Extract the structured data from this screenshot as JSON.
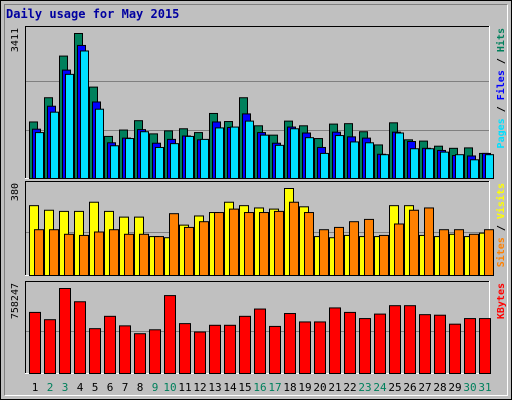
{
  "title": "Daily usage for May 2015",
  "colors": {
    "hits": "#00805c",
    "files": "#0000ff",
    "pages": "#00e0ff",
    "visits": "#ffff00",
    "sites": "#ff8000",
    "kbytes": "#ff0000",
    "day_weekday": "#000000",
    "day_weekend": "#00805c"
  },
  "chart_data": [
    {
      "type": "bar",
      "name": "requests",
      "max_label": "3411",
      "ymax": 3411,
      "categories": [
        "1",
        "2",
        "3",
        "4",
        "5",
        "6",
        "7",
        "8",
        "9",
        "10",
        "11",
        "12",
        "13",
        "14",
        "15",
        "16",
        "17",
        "18",
        "19",
        "20",
        "21",
        "22",
        "23",
        "24",
        "25",
        "26",
        "27",
        "28",
        "29",
        "30",
        "31"
      ],
      "series": [
        {
          "name": "Hits",
          "values": [
            1330,
            1900,
            2880,
            3411,
            2150,
            990,
            1140,
            1360,
            1050,
            1120,
            1170,
            1080,
            1530,
            1340,
            1900,
            1240,
            1020,
            1350,
            1240,
            940,
            1280,
            1290,
            1100,
            790,
            1310,
            910,
            880,
            760,
            710,
            720,
            590
          ]
        },
        {
          "name": "Files",
          "values": [
            1160,
            1700,
            2550,
            3130,
            1800,
            840,
            950,
            1150,
            830,
            920,
            1000,
            910,
            1330,
            1200,
            1520,
            1080,
            830,
            1210,
            1070,
            730,
            1090,
            980,
            950,
            570,
            1090,
            870,
            710,
            660,
            540,
            530,
            590
          ]
        },
        {
          "name": "Pages",
          "values": [
            1080,
            1560,
            2450,
            3000,
            1630,
            770,
            940,
            1100,
            730,
            820,
            990,
            920,
            1190,
            1210,
            1350,
            1020,
            780,
            1170,
            960,
            590,
            1010,
            860,
            840,
            560,
            1070,
            700,
            700,
            620,
            560,
            440,
            560
          ]
        }
      ],
      "legend": [
        "Pages",
        "Files",
        "Hits"
      ],
      "legend_separator": " / "
    },
    {
      "type": "bar",
      "name": "visitors",
      "max_label": "380",
      "ymax": 380,
      "categories": [
        "1",
        "2",
        "3",
        "4",
        "5",
        "6",
        "7",
        "8",
        "9",
        "10",
        "11",
        "12",
        "13",
        "14",
        "15",
        "16",
        "17",
        "18",
        "19",
        "20",
        "21",
        "22",
        "23",
        "24",
        "25",
        "26",
        "27",
        "28",
        "29",
        "30",
        "31"
      ],
      "series": [
        {
          "name": "Visits",
          "values": [
            305,
            285,
            280,
            280,
            320,
            280,
            255,
            255,
            170,
            165,
            220,
            260,
            275,
            320,
            305,
            295,
            290,
            380,
            300,
            170,
            165,
            175,
            170,
            170,
            305,
            305,
            175,
            170,
            180,
            170,
            185
          ]
        },
        {
          "name": "Sites",
          "values": [
            200,
            200,
            180,
            175,
            190,
            200,
            180,
            180,
            170,
            270,
            210,
            235,
            275,
            290,
            275,
            275,
            280,
            320,
            275,
            200,
            210,
            235,
            245,
            175,
            225,
            285,
            295,
            200,
            200,
            180,
            200
          ]
        }
      ],
      "legend": [
        "Sites",
        "Visits"
      ],
      "legend_separator": " / "
    },
    {
      "type": "bar",
      "name": "volume",
      "max_label": "758247",
      "ymax": 758247,
      "categories": [
        "1",
        "2",
        "3",
        "4",
        "5",
        "6",
        "7",
        "8",
        "9",
        "10",
        "11",
        "12",
        "13",
        "14",
        "15",
        "16",
        "17",
        "18",
        "19",
        "20",
        "21",
        "22",
        "23",
        "24",
        "25",
        "26",
        "27",
        "28",
        "29",
        "30",
        "31"
      ],
      "series": [
        {
          "name": "KBytes",
          "values": [
            545000,
            480000,
            758247,
            640000,
            400000,
            510000,
            425000,
            355000,
            390000,
            695000,
            445000,
            370000,
            430000,
            430000,
            510000,
            575000,
            420000,
            535000,
            460000,
            460000,
            585000,
            545000,
            490000,
            530000,
            605000,
            605000,
            525000,
            520000,
            440000,
            490000,
            490000
          ]
        }
      ],
      "legend": [
        "KBytes"
      ],
      "legend_separator": ""
    }
  ]
}
